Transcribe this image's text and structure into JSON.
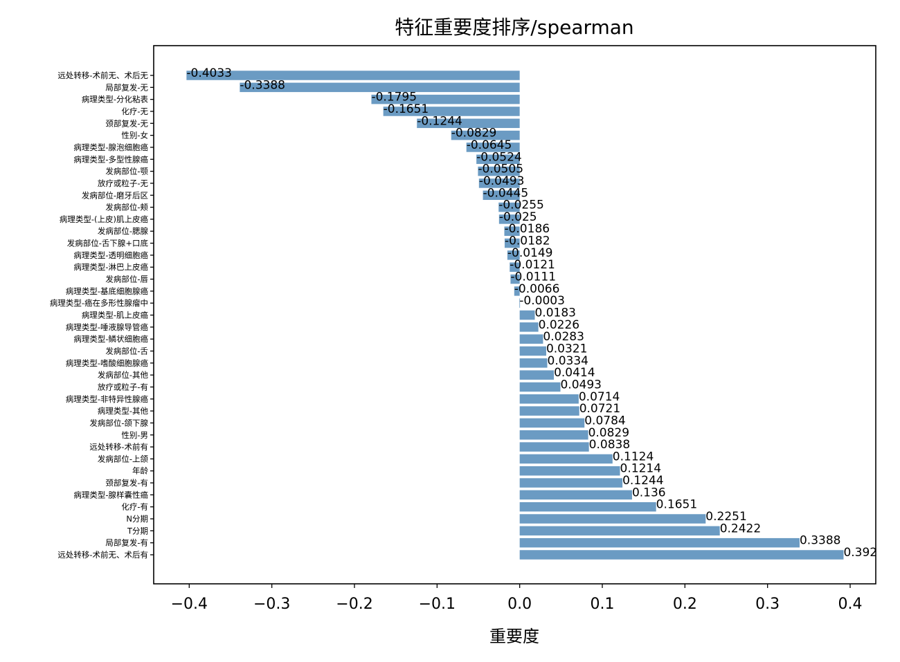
{
  "chart_data": {
    "type": "bar",
    "orientation": "horizontal",
    "title": "特征重要度排序/spearman",
    "xlabel": "重要度",
    "ylabel": "",
    "xlim": [
      -0.443,
      0.431
    ],
    "xticks": [
      -0.4,
      -0.3,
      -0.2,
      -0.1,
      0.0,
      0.1,
      0.2,
      0.3,
      0.4
    ],
    "xtick_labels": [
      "−0.4",
      "−0.3",
      "−0.2",
      "−0.1",
      "0.0",
      "0.1",
      "0.2",
      "0.3",
      "0.4"
    ],
    "bar_color": "#6b9bc3",
    "categories": [
      "远处转移-术前无、术后无",
      "局部复发-无",
      "病理类型-分化粘表",
      "化疗-无",
      "颈部复发-无",
      "性别-女",
      "病理类型-腺泡细胞癌",
      "病理类型-多型性腺癌",
      "发病部位-颚",
      "放疗或粒子-无",
      "发病部位-磨牙后区",
      "发病部位-颊",
      "病理类型-(上皮)肌上皮癌",
      "发病部位-腮腺",
      "发病部位-舌下腺+口底",
      "病理类型-透明细胞癌",
      "病理类型-淋巴上皮癌",
      "发病部位-唇",
      "病理类型-基底细胞腺癌",
      "病理类型-癌在多形性腺瘤中",
      "病理类型-肌上皮癌",
      "病理类型-唾液腺导管癌",
      "病理类型-鳞状细胞癌",
      "发病部位-舌",
      "病理类型-嗜酸细胞腺癌",
      "发病部位-其他",
      "放疗或粒子-有",
      "病理类型-非特异性腺癌",
      "病理类型-其他",
      "发病部位-颌下腺",
      "性别-男",
      "远处转移-术前有",
      "发病部位-上颌",
      "年龄",
      "颈部复发-有",
      "病理类型-腺样囊性癌",
      "化疗-有",
      "N分期",
      "T分期",
      "局部复发-有",
      "远处转移-术前无、术后有"
    ],
    "values": [
      -0.4033,
      -0.3388,
      -0.1795,
      -0.1651,
      -0.1244,
      -0.0829,
      -0.0645,
      -0.0524,
      -0.0505,
      -0.0493,
      -0.0445,
      -0.0255,
      -0.025,
      -0.0186,
      -0.0182,
      -0.0149,
      -0.0121,
      -0.0111,
      -0.0066,
      -0.0003,
      0.0183,
      0.0226,
      0.0283,
      0.0321,
      0.0334,
      0.0414,
      0.0493,
      0.0714,
      0.0721,
      0.0784,
      0.0829,
      0.0838,
      0.1124,
      0.1214,
      0.1244,
      0.136,
      0.1651,
      0.2251,
      0.2422,
      0.3388,
      0.392
    ],
    "data_labels": [
      "-0.4033",
      "-0.3388",
      "-0.1795",
      "-0.1651",
      "-0.1244",
      "-0.0829",
      "-0.0645",
      "-0.0524",
      "-0.0505",
      "-0.0493",
      "-0.0445",
      "-0.0255",
      "-0.025",
      "-0.0186",
      "-0.0182",
      "-0.0149",
      "-0.0121",
      "-0.0111",
      "-0.0066",
      "-0.0003",
      "0.0183",
      "0.0226",
      "0.0283",
      "0.0321",
      "0.0334",
      "0.0414",
      "0.0493",
      "0.0714",
      "0.0721",
      "0.0784",
      "0.0829",
      "0.0838",
      "0.1124",
      "0.1214",
      "0.1244",
      "0.136",
      "0.1651",
      "0.2251",
      "0.2422",
      "0.3388",
      "0.392"
    ],
    "grid": false,
    "legend": "none"
  }
}
